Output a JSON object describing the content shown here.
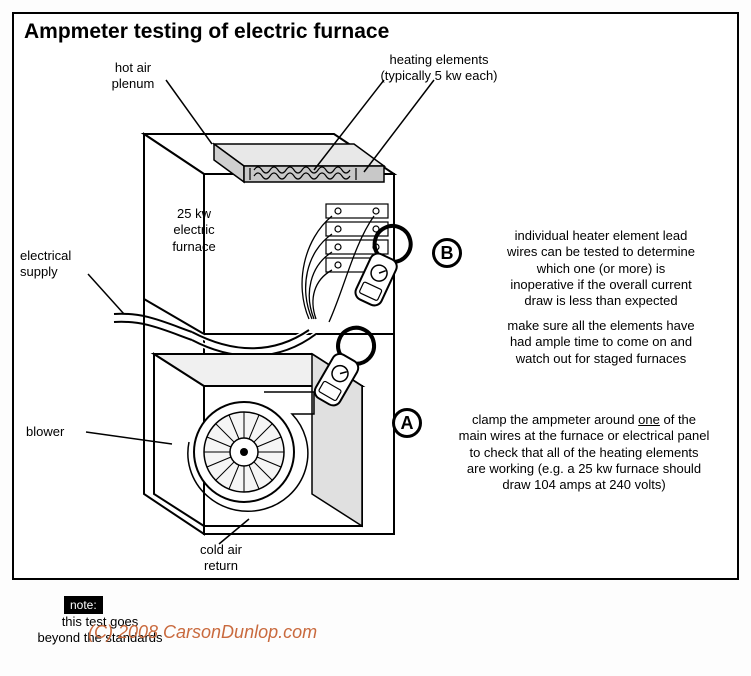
{
  "title": "Ampmeter testing of electric furnace",
  "labels": {
    "hot_air_plenum": "hot air\nplenum",
    "heating_elements": "heating elements\n(typically 5 kw each)",
    "furnace_rating": "25 kw\nelectric\nfurnace",
    "electrical_supply": "electrical\nsupply",
    "blower": "blower",
    "cold_air_return": "cold air\nreturn",
    "note_label": "note:",
    "note_text": "this test goes\nbeyond the standards",
    "text_b_1": "individual heater element lead\nwires can be tested to determine\nwhich one (or more) is\ninoperative if the overall current\ndraw is less than expected",
    "text_b_2": "make sure all the elements have\nhad ample time to come on and\nwatch out for staged furnaces",
    "text_a_pre": "clamp the ampmeter around ",
    "text_a_one": "one",
    "text_a_post": " of the\nmain wires at the furnace or electrical panel\nto check that all of the heating elements\nare working (e.g. a 25 kw furnace should\ndraw 104 amps at 240 volts)"
  },
  "markers": {
    "a": "A",
    "b": "B"
  },
  "watermark": "(C) 2008 CarsonDunlop.com",
  "colors": {
    "line": "#000000",
    "bg": "#ffffff",
    "fill_light": "#f4f4f4",
    "watermark": "#c96a3e"
  },
  "diagram": {
    "type": "technical-illustration",
    "subject": "electric-furnace-ampmeter-test",
    "view": "isometric-cutaway",
    "components": [
      "plenum",
      "heating-elements-coil",
      "element-terminal-block",
      "electrical-supply-cable",
      "blower-fan",
      "clamp-ampmeter-a",
      "clamp-ampmeter-b",
      "cold-air-return"
    ]
  }
}
